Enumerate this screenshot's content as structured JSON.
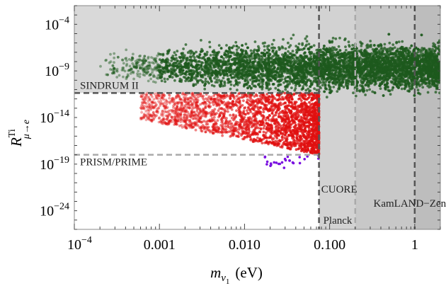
{
  "chart_data": {
    "type": "scatter",
    "title": "",
    "xscale": "log",
    "yscale": "log",
    "xlim": [
      0.0001,
      2
    ],
    "ylim": [
      1e-26,
      0.01
    ],
    "xlabel": {
      "main": "m",
      "sub": "ν",
      "subsub": "1",
      "unit": "(eV)"
    },
    "ylabel": {
      "main": "R",
      "sup": "Ti",
      "sub": "μ→e"
    },
    "x_ticks": [
      {
        "value": 0.0001,
        "base": "10",
        "exp": "−4",
        "label": ""
      },
      {
        "value": 0.001,
        "label": "0.001"
      },
      {
        "value": 0.01,
        "label": "0.010"
      },
      {
        "value": 0.1,
        "label": "0.100"
      },
      {
        "value": 1,
        "label": "1"
      }
    ],
    "y_ticks": [
      {
        "value": 0.0001,
        "base": "10",
        "exp": "−4"
      },
      {
        "value": 1e-09,
        "base": "10",
        "exp": "−9"
      },
      {
        "value": 1e-14,
        "base": "10",
        "exp": "−14"
      },
      {
        "value": 1e-19,
        "base": "10",
        "exp": "−19"
      },
      {
        "value": 1e-24,
        "base": "10",
        "exp": "−24"
      }
    ],
    "limits": [
      {
        "label": "SINDRUM II",
        "axis": "y",
        "value": 4.3e-12,
        "style": "dashed",
        "color": "#555555"
      },
      {
        "label": "PRISM/PRIME",
        "axis": "y",
        "value": 1e-18,
        "style": "dashed",
        "color": "#aaaaaa"
      },
      {
        "label": "Planck",
        "axis": "x",
        "value": 0.075,
        "style": "dashed",
        "color": "#555555"
      },
      {
        "label": "CUORE",
        "axis": "x",
        "value": 0.2,
        "style": "dashed",
        "color": "#aaaaaa"
      },
      {
        "label": "KamLAND−Zen",
        "axis": "x",
        "value": 1.0,
        "style": "dashed",
        "color": "#555555"
      }
    ],
    "series": [
      {
        "color": "#1e5a1e",
        "x_range": [
          0.0002,
          2
        ],
        "y_range": [
          1e-12,
          0.001
        ]
      },
      {
        "color": "#e01010",
        "x_range": [
          0.0006,
          0.075
        ],
        "y_range": [
          1e-18,
          4.3e-12
        ]
      },
      {
        "color": "#7a10e0",
        "x_range": [
          0.017,
          0.075
        ],
        "y_range": [
          1e-20,
          1e-18
        ]
      }
    ],
    "grid": false,
    "legend": "none"
  }
}
